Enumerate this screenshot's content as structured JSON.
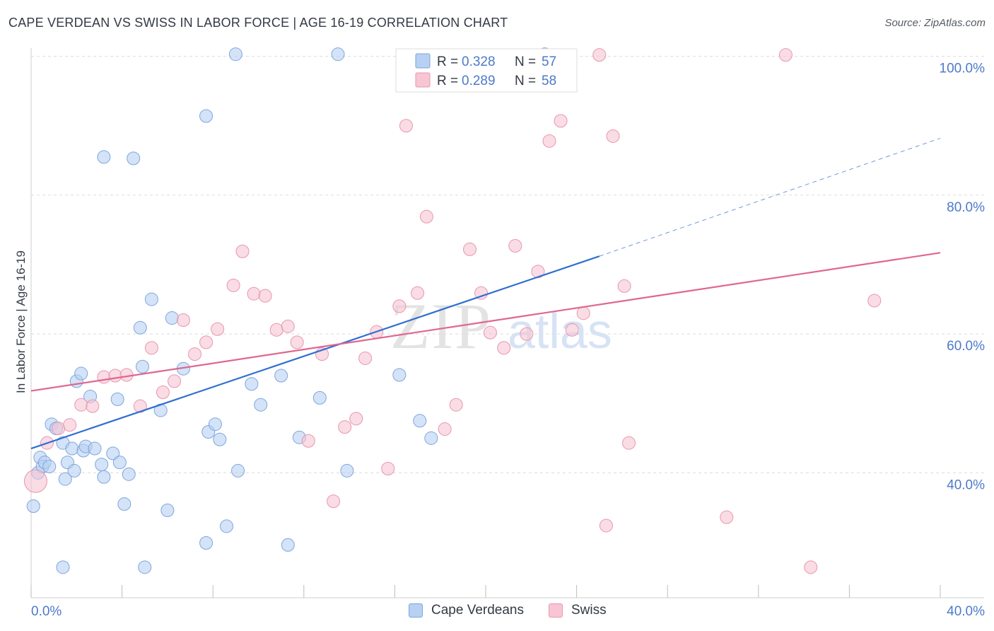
{
  "header": {
    "title": "CAPE VERDEAN VS SWISS IN LABOR FORCE | AGE 16-19 CORRELATION CHART",
    "source": "Source: ZipAtlas.com"
  },
  "colors": {
    "blue_fill": "#b8d0f2",
    "blue_stroke": "#7da6de",
    "blue_line": "#2f6fcf",
    "pink_fill": "#f7c5d4",
    "pink_stroke": "#e896b0",
    "pink_line": "#e06690",
    "axis_label": "#4d7ac9",
    "grid": "#dcdcdc"
  },
  "chart_data": {
    "type": "scatter",
    "title": "CAPE VERDEAN VS SWISS IN LABOR FORCE | AGE 16-19 CORRELATION CHART",
    "xlabel": "",
    "ylabel": "In Labor Force | Age 16-19",
    "xlim": [
      0,
      40
    ],
    "ylim": [
      22,
      102
    ],
    "x_tick_labels": [
      "0.0%",
      "40.0%"
    ],
    "y_ticks": [
      40,
      60,
      80,
      100
    ],
    "y_tick_labels": [
      "40.0%",
      "60.0%",
      "80.0%",
      "100.0%"
    ],
    "grid": true,
    "watermark": "ZIPatlas",
    "legend_position": "top-center",
    "series": [
      {
        "name": "Cape Verdeans",
        "r_label": "R =",
        "r_value": "0.328",
        "n_label": "N =",
        "n_value": "57",
        "trend": {
          "x0": 0,
          "y0": 43.5,
          "x1": 25,
          "y1": 71.2,
          "dash_x1": 40,
          "dash_y1": 88.2
        },
        "points": [
          [
            0.1,
            35.2
          ],
          [
            0.3,
            40.0
          ],
          [
            0.4,
            42.2
          ],
          [
            0.5,
            40.9
          ],
          [
            0.6,
            41.5
          ],
          [
            0.8,
            40.9
          ],
          [
            0.9,
            47.0
          ],
          [
            1.1,
            46.4
          ],
          [
            1.4,
            44.3
          ],
          [
            1.5,
            39.1
          ],
          [
            1.6,
            41.5
          ],
          [
            1.8,
            43.5
          ],
          [
            1.9,
            40.3
          ],
          [
            2.0,
            53.2
          ],
          [
            2.2,
            54.3
          ],
          [
            2.3,
            43.2
          ],
          [
            2.4,
            43.8
          ],
          [
            2.6,
            51.0
          ],
          [
            2.8,
            43.5
          ],
          [
            3.1,
            41.2
          ],
          [
            3.2,
            85.5
          ],
          [
            3.2,
            39.4
          ],
          [
            3.6,
            42.8
          ],
          [
            3.8,
            50.6
          ],
          [
            3.9,
            41.5
          ],
          [
            4.1,
            35.5
          ],
          [
            4.3,
            39.8
          ],
          [
            4.5,
            85.3
          ],
          [
            4.8,
            60.9
          ],
          [
            4.9,
            55.3
          ],
          [
            5.3,
            65.0
          ],
          [
            5.7,
            49.0
          ],
          [
            6.0,
            34.6
          ],
          [
            6.2,
            62.3
          ],
          [
            6.7,
            55.0
          ],
          [
            7.7,
            91.4
          ],
          [
            7.7,
            29.9
          ],
          [
            7.8,
            45.9
          ],
          [
            8.1,
            47.0
          ],
          [
            8.3,
            44.8
          ],
          [
            8.6,
            32.3
          ],
          [
            9.0,
            100.3
          ],
          [
            9.1,
            40.3
          ],
          [
            9.7,
            52.8
          ],
          [
            10.1,
            49.8
          ],
          [
            11.0,
            54.0
          ],
          [
            11.3,
            29.6
          ],
          [
            11.8,
            45.1
          ],
          [
            12.7,
            50.8
          ],
          [
            13.5,
            100.3
          ],
          [
            13.9,
            40.3
          ],
          [
            16.2,
            54.1
          ],
          [
            17.1,
            47.5
          ],
          [
            17.6,
            45.0
          ],
          [
            22.6,
            100.3
          ],
          [
            1.4,
            26.4
          ],
          [
            5.0,
            26.4
          ]
        ]
      },
      {
        "name": "Swiss",
        "r_label": "R =",
        "r_value": "0.289",
        "n_label": "N =",
        "n_value": "58",
        "trend": {
          "x0": 0,
          "y0": 51.8,
          "x1": 40,
          "y1": 71.7
        },
        "points": [
          [
            0.2,
            38.8
          ],
          [
            0.7,
            44.3
          ],
          [
            1.2,
            46.4
          ],
          [
            1.7,
            46.9
          ],
          [
            2.2,
            49.8
          ],
          [
            2.7,
            49.6
          ],
          [
            3.2,
            53.8
          ],
          [
            3.7,
            54.0
          ],
          [
            4.2,
            54.1
          ],
          [
            4.8,
            49.6
          ],
          [
            5.3,
            58.0
          ],
          [
            5.8,
            51.6
          ],
          [
            6.3,
            53.2
          ],
          [
            6.7,
            62.0
          ],
          [
            7.2,
            57.1
          ],
          [
            7.7,
            58.8
          ],
          [
            8.2,
            60.7
          ],
          [
            8.9,
            67.0
          ],
          [
            9.3,
            71.9
          ],
          [
            9.8,
            65.8
          ],
          [
            10.3,
            65.5
          ],
          [
            10.8,
            60.6
          ],
          [
            11.3,
            61.1
          ],
          [
            11.7,
            58.8
          ],
          [
            12.2,
            44.6
          ],
          [
            12.8,
            57.1
          ],
          [
            13.3,
            35.9
          ],
          [
            13.8,
            46.6
          ],
          [
            14.3,
            47.8
          ],
          [
            14.7,
            56.5
          ],
          [
            15.2,
            60.3
          ],
          [
            15.7,
            40.6
          ],
          [
            16.2,
            64.0
          ],
          [
            16.5,
            90.0
          ],
          [
            17.0,
            65.9
          ],
          [
            17.4,
            76.9
          ],
          [
            18.2,
            46.3
          ],
          [
            18.7,
            49.8
          ],
          [
            19.3,
            72.2
          ],
          [
            19.8,
            65.9
          ],
          [
            20.2,
            60.2
          ],
          [
            20.8,
            58.0
          ],
          [
            21.3,
            72.7
          ],
          [
            21.8,
            60.0
          ],
          [
            22.3,
            69.0
          ],
          [
            22.8,
            87.8
          ],
          [
            23.3,
            90.7
          ],
          [
            23.8,
            60.6
          ],
          [
            24.3,
            63.0
          ],
          [
            25.0,
            100.2
          ],
          [
            25.3,
            32.4
          ],
          [
            25.6,
            88.5
          ],
          [
            26.1,
            66.9
          ],
          [
            26.3,
            44.3
          ],
          [
            30.6,
            33.6
          ],
          [
            33.2,
            100.2
          ],
          [
            34.3,
            26.4
          ],
          [
            37.1,
            64.8
          ]
        ]
      }
    ]
  }
}
